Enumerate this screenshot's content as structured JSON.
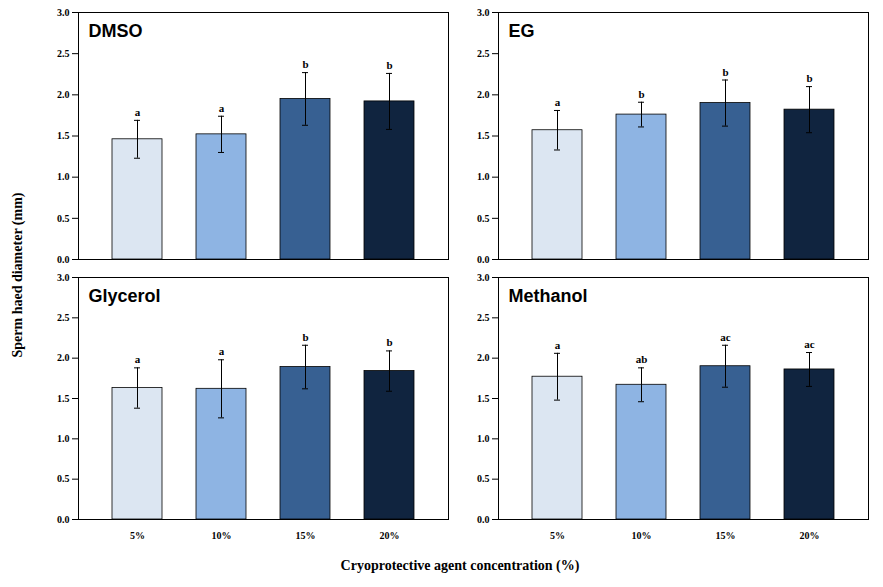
{
  "figure": {
    "x_label": "Cryoprotective agent concentration (%)",
    "y_label": "Sperm haed diameter (mm)"
  },
  "chart_data": [
    {
      "type": "bar",
      "title": "DMSO",
      "categories": [
        "5%",
        "10%",
        "15%",
        "20%"
      ],
      "values": [
        1.46,
        1.52,
        1.95,
        1.92
      ],
      "errors": [
        0.23,
        0.22,
        0.32,
        0.34
      ],
      "annotations": [
        "a",
        "a",
        "b",
        "b"
      ],
      "colors": [
        "#dce6f2",
        "#8eb4e3",
        "#376092",
        "#10243f"
      ],
      "ylim": [
        0,
        3
      ],
      "yticks": [
        {
          "value": 0,
          "label": "0.0"
        },
        {
          "value": 0.5,
          "label": "0.5"
        },
        {
          "value": 1,
          "label": "1.0"
        },
        {
          "value": 1.5,
          "label": "1.5"
        },
        {
          "value": 2,
          "label": "2.0"
        },
        {
          "value": 2.5,
          "label": "2.5"
        },
        {
          "value": 3,
          "label": "3.0"
        }
      ],
      "tick_labels": "y"
    },
    {
      "type": "bar",
      "title": "EG",
      "categories": [
        "5%",
        "10%",
        "15%",
        "20%"
      ],
      "values": [
        1.57,
        1.76,
        1.9,
        1.82
      ],
      "errors": [
        0.24,
        0.15,
        0.28,
        0.28
      ],
      "annotations": [
        "a",
        "b",
        "b",
        "b"
      ],
      "colors": [
        "#dce6f2",
        "#8eb4e3",
        "#376092",
        "#10243f"
      ],
      "ylim": [
        0,
        3
      ],
      "yticks": [
        {
          "value": 0,
          "label": "0.0"
        },
        {
          "value": 0.5,
          "label": "0.5"
        },
        {
          "value": 1,
          "label": "1.0"
        },
        {
          "value": 1.5,
          "label": "1.5"
        },
        {
          "value": 2,
          "label": "2.0"
        },
        {
          "value": 2.5,
          "label": "2.5"
        },
        {
          "value": 3,
          "label": "3.0"
        }
      ],
      "tick_labels": "y"
    },
    {
      "type": "bar",
      "title": "Glycerol",
      "categories": [
        "5%",
        "10%",
        "15%",
        "20%"
      ],
      "values": [
        1.63,
        1.62,
        1.89,
        1.84
      ],
      "errors": [
        0.25,
        0.36,
        0.27,
        0.25
      ],
      "annotations": [
        "a",
        "a",
        "b",
        "b"
      ],
      "colors": [
        "#dce6f2",
        "#8eb4e3",
        "#376092",
        "#10243f"
      ],
      "ylim": [
        0,
        3
      ],
      "yticks": [
        {
          "value": 0,
          "label": "0.0"
        },
        {
          "value": 0.5,
          "label": "0.5"
        },
        {
          "value": 1,
          "label": "1.0"
        },
        {
          "value": 1.5,
          "label": "1.5"
        },
        {
          "value": 2,
          "label": "2.0"
        },
        {
          "value": 2.5,
          "label": "2.5"
        },
        {
          "value": 3,
          "label": "3.0"
        }
      ]
    },
    {
      "type": "bar",
      "title": "Methanol",
      "categories": [
        "5%",
        "10%",
        "15%",
        "20%"
      ],
      "values": [
        1.77,
        1.67,
        1.9,
        1.86
      ],
      "errors": [
        0.29,
        0.21,
        0.26,
        0.21
      ],
      "annotations": [
        "a",
        "ab",
        "ac",
        "ac"
      ],
      "colors": [
        "#dce6f2",
        "#8eb4e3",
        "#376092",
        "#10243f"
      ],
      "ylim": [
        0,
        3
      ],
      "yticks": [
        {
          "value": 0,
          "label": "0.0"
        },
        {
          "value": 0.5,
          "label": "0.5"
        },
        {
          "value": 1,
          "label": "1.0"
        },
        {
          "value": 1.5,
          "label": "1.5"
        },
        {
          "value": 2,
          "label": "2.0"
        },
        {
          "value": 2.5,
          "label": "2.5"
        },
        {
          "value": 3,
          "label": "3.0"
        }
      ]
    }
  ]
}
